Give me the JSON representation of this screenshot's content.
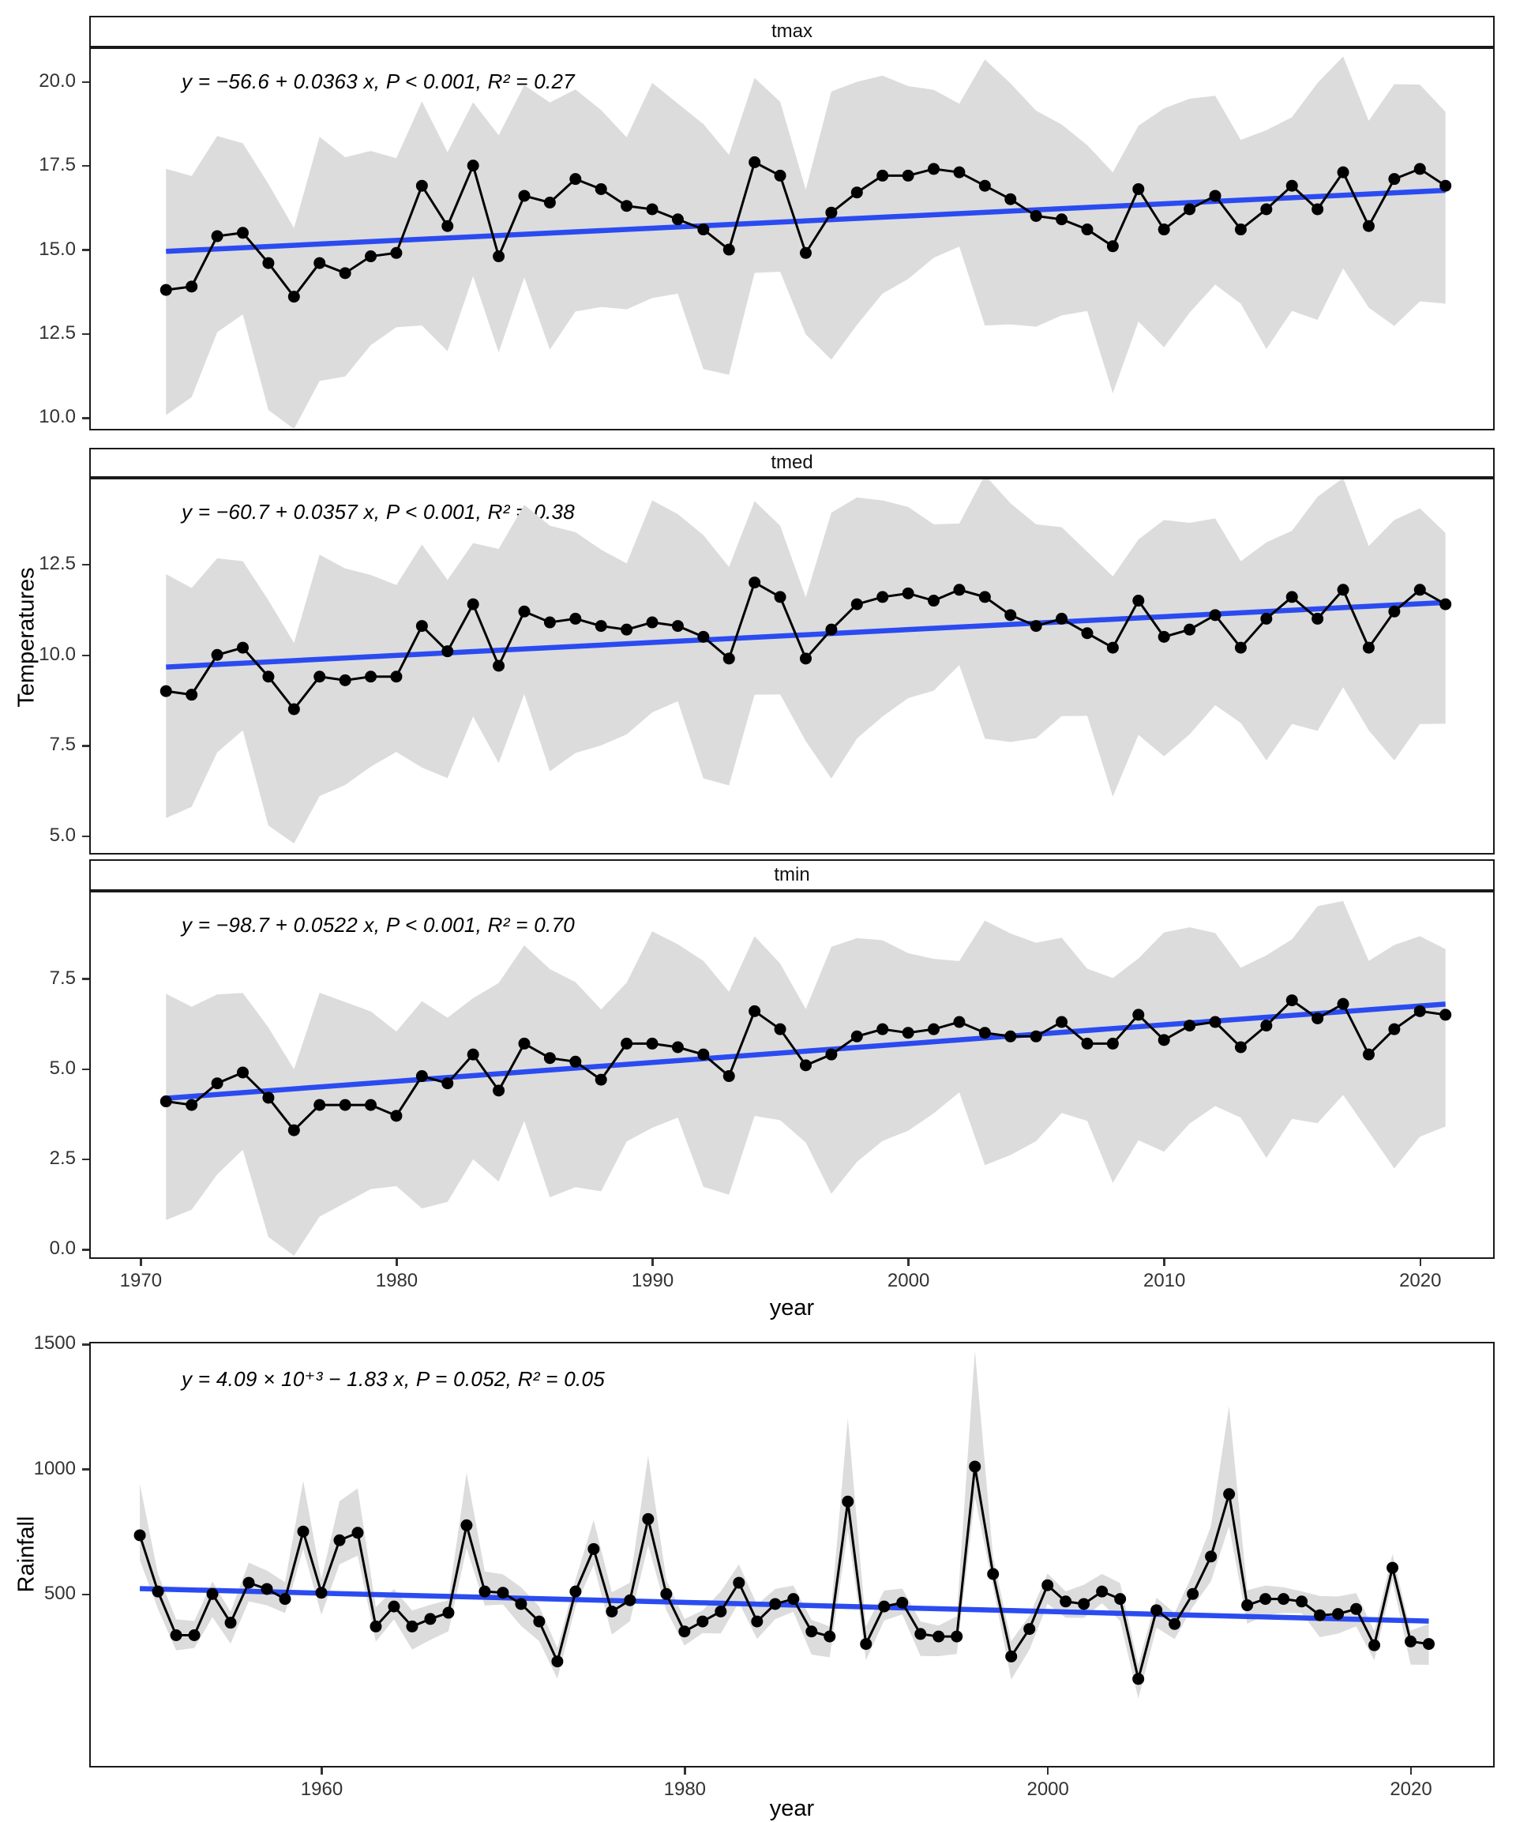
{
  "labels": {
    "xlabel": "year",
    "temp_ylabel": "Temperatures",
    "rain_ylabel": "Rainfall"
  },
  "colors": {
    "trend": "#2B4BF0",
    "ribbon": "#DCDCDC",
    "line": "#000000",
    "point": "#000000",
    "border": "#1a1a1a",
    "tick_text": "#333333"
  },
  "chart_data": [
    {
      "type": "line",
      "facet": "tmax",
      "equation": "y = −56.6 + 0.0363 x, P < 0.001, R² = 0.27",
      "xlabel": "year",
      "ylabel": "Temperatures",
      "grid": false,
      "legend": "none",
      "xticks": [
        1970,
        1980,
        1990,
        2000,
        2010,
        2020
      ],
      "yticks": [
        20.0,
        17.5,
        15.0,
        12.5,
        10.0
      ],
      "xlim": [
        1968.06,
        2022.83
      ],
      "ylim": [
        9.69,
        20.97
      ],
      "trend": {
        "intercept": -56.6,
        "slope": 0.0363
      },
      "band": {
        "upper": 2.9,
        "lower": 3.4
      },
      "x": [
        1971,
        1972,
        1973,
        1974,
        1975,
        1976,
        1977,
        1978,
        1979,
        1980,
        1981,
        1982,
        1983,
        1984,
        1985,
        1986,
        1987,
        1988,
        1989,
        1990,
        1991,
        1992,
        1993,
        1994,
        1995,
        1996,
        1997,
        1998,
        1999,
        2000,
        2001,
        2002,
        2003,
        2004,
        2005,
        2006,
        2007,
        2008,
        2009,
        2010,
        2011,
        2012,
        2013,
        2014,
        2015,
        2016,
        2017,
        2018,
        2019,
        2020,
        2021
      ],
      "y": [
        13.8,
        13.9,
        15.4,
        15.5,
        14.6,
        13.6,
        14.6,
        14.3,
        14.8,
        14.9,
        16.9,
        15.7,
        17.5,
        14.8,
        16.6,
        16.4,
        17.1,
        16.8,
        16.3,
        16.2,
        15.9,
        15.6,
        15.0,
        17.6,
        17.2,
        14.9,
        16.1,
        16.7,
        17.2,
        17.2,
        17.4,
        17.3,
        16.9,
        16.5,
        16.0,
        15.9,
        15.6,
        15.1,
        16.8,
        15.6,
        16.2,
        16.6,
        15.6,
        16.2,
        16.9,
        16.2,
        17.3,
        15.7,
        17.1,
        17.4,
        16.9
      ]
    },
    {
      "type": "line",
      "facet": "tmed",
      "equation": "y = −60.7 + 0.0357 x, P < 0.001, R² = 0.38",
      "xlabel": "year",
      "ylabel": "Temperatures",
      "grid": false,
      "legend": "none",
      "xticks": [
        1970,
        1980,
        1990,
        2000,
        2010,
        2020
      ],
      "yticks": [
        12.5,
        10.0,
        7.5,
        5.0
      ],
      "xlim": [
        1968.06,
        2022.83
      ],
      "ylim": [
        4.55,
        14.85
      ],
      "trend": {
        "intercept": -60.7,
        "slope": 0.0357
      },
      "band": {
        "upper": 2.6,
        "lower": 3.2
      },
      "x": [
        1971,
        1972,
        1973,
        1974,
        1975,
        1976,
        1977,
        1978,
        1979,
        1980,
        1981,
        1982,
        1983,
        1984,
        1985,
        1986,
        1987,
        1988,
        1989,
        1990,
        1991,
        1992,
        1993,
        1994,
        1995,
        1996,
        1997,
        1998,
        1999,
        2000,
        2001,
        2002,
        2003,
        2004,
        2005,
        2006,
        2007,
        2008,
        2009,
        2010,
        2011,
        2012,
        2013,
        2014,
        2015,
        2016,
        2017,
        2018,
        2019,
        2020,
        2021
      ],
      "y": [
        9.0,
        8.9,
        10.0,
        10.2,
        9.4,
        8.5,
        9.4,
        9.3,
        9.4,
        9.4,
        10.8,
        10.1,
        11.4,
        9.7,
        11.2,
        10.9,
        11.0,
        10.8,
        10.7,
        10.9,
        10.8,
        10.5,
        9.9,
        12.0,
        11.6,
        9.9,
        10.7,
        11.4,
        11.6,
        11.7,
        11.5,
        11.8,
        11.6,
        11.1,
        10.8,
        11.0,
        10.6,
        10.2,
        11.5,
        10.5,
        10.7,
        11.1,
        10.2,
        11.0,
        11.6,
        11.0,
        11.8,
        10.2,
        11.2,
        11.8,
        11.4
      ]
    },
    {
      "type": "line",
      "facet": "tmin",
      "equation": "y = −98.7 + 0.0522 x, P < 0.001, R² = 0.70",
      "xlabel": "year",
      "ylabel": "Temperatures",
      "grid": false,
      "legend": "none",
      "xticks": [
        1970,
        1980,
        1990,
        2000,
        2010,
        2020
      ],
      "yticks": [
        7.5,
        5.0,
        2.5,
        0.0
      ],
      "xlim": [
        1968.06,
        2022.83
      ],
      "ylim": [
        -0.2,
        9.89
      ],
      "trend": {
        "intercept": -98.7,
        "slope": 0.0522
      },
      "band": {
        "upper": 2.4,
        "lower": 3.0
      },
      "x": [
        1971,
        1972,
        1973,
        1974,
        1975,
        1976,
        1977,
        1978,
        1979,
        1980,
        1981,
        1982,
        1983,
        1984,
        1985,
        1986,
        1987,
        1988,
        1989,
        1990,
        1991,
        1992,
        1993,
        1994,
        1995,
        1996,
        1997,
        1998,
        1999,
        2000,
        2001,
        2002,
        2003,
        2004,
        2005,
        2006,
        2007,
        2008,
        2009,
        2010,
        2011,
        2012,
        2013,
        2014,
        2015,
        2016,
        2017,
        2018,
        2019,
        2020,
        2021
      ],
      "y": [
        4.1,
        4.0,
        4.6,
        4.9,
        4.2,
        3.3,
        4.0,
        4.0,
        4.0,
        3.7,
        4.8,
        4.6,
        5.4,
        4.4,
        5.7,
        5.3,
        5.2,
        4.7,
        5.7,
        5.7,
        5.6,
        5.4,
        4.8,
        6.6,
        6.1,
        5.1,
        5.4,
        5.9,
        6.1,
        6.0,
        6.1,
        6.3,
        6.0,
        5.9,
        5.9,
        6.3,
        5.7,
        5.7,
        6.5,
        5.8,
        6.2,
        6.3,
        5.6,
        6.2,
        6.9,
        6.4,
        6.8,
        5.4,
        6.1,
        6.6,
        6.5
      ]
    },
    {
      "type": "line",
      "facet": null,
      "equation": "y = 4.09 × 10⁺³ − 1.83 x, P = 0.052, R² = 0.05",
      "xlabel": "year",
      "ylabel": "Rainfall",
      "grid": false,
      "legend": "none",
      "xticks": [
        1960,
        1980,
        2000,
        2020
      ],
      "yticks": [
        1500,
        1000,
        500
      ],
      "xlim": [
        1947.3,
        2024.5
      ],
      "ylim": [
        -185,
        1503
      ],
      "trend": {
        "intercept": 4090,
        "slope": -1.83
      },
      "band": {
        "upper": 62,
        "lower": 72,
        "flare_threshold": 600,
        "flare_upper": 0.95,
        "flare_lower": 0.15
      },
      "x": [
        1950,
        1951,
        1952,
        1953,
        1954,
        1955,
        1956,
        1957,
        1958,
        1959,
        1960,
        1961,
        1962,
        1963,
        1964,
        1965,
        1966,
        1967,
        1968,
        1969,
        1970,
        1971,
        1972,
        1973,
        1974,
        1975,
        1976,
        1977,
        1978,
        1979,
        1980,
        1981,
        1982,
        1983,
        1984,
        1985,
        1986,
        1987,
        1988,
        1989,
        1990,
        1991,
        1992,
        1993,
        1994,
        1995,
        1996,
        1997,
        1998,
        1999,
        2000,
        2001,
        2002,
        2003,
        2004,
        2005,
        2006,
        2007,
        2008,
        2009,
        2010,
        2011,
        2012,
        2013,
        2014,
        2015,
        2016,
        2017,
        2018,
        2019,
        2020,
        2021
      ],
      "y": [
        735,
        510,
        335,
        335,
        500,
        385,
        545,
        520,
        480,
        750,
        505,
        715,
        745,
        370,
        450,
        370,
        400,
        425,
        775,
        510,
        505,
        460,
        390,
        230,
        510,
        680,
        430,
        475,
        800,
        500,
        350,
        390,
        430,
        545,
        390,
        460,
        480,
        350,
        330,
        870,
        300,
        450,
        465,
        340,
        330,
        330,
        1010,
        580,
        250,
        360,
        535,
        470,
        460,
        510,
        480,
        160,
        435,
        380,
        500,
        650,
        900,
        455,
        480,
        480,
        470,
        415,
        420,
        440,
        295,
        605,
        310,
        300
      ]
    }
  ]
}
